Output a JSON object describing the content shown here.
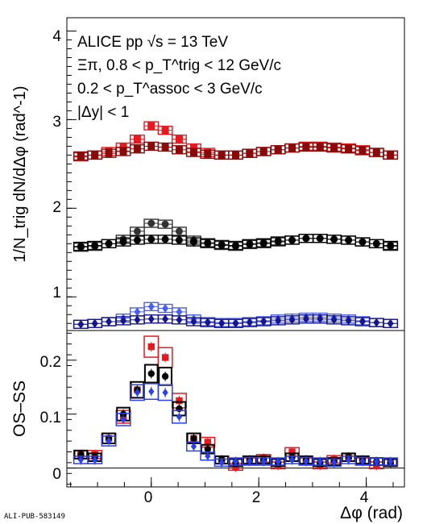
{
  "chart_data": [
    {
      "type": "scatter",
      "panel": "top",
      "ylabel": "1/N_trig dN/dΔφ (rad^-1)",
      "ylim": [
        0.62,
        4.15
      ],
      "y_ticks": [
        "1",
        "2",
        "3",
        "4"
      ],
      "annotations": [
        "ALICE pp √s = 13 TeV",
        "Ξπ, 0.8 < p_T^trig < 12 GeV/c",
        "0.2 < p_T^assoc < 3 GeV/c",
        "|Δy| < 1"
      ],
      "x": [
        -1.31,
        -1.05,
        -0.79,
        -0.52,
        -0.26,
        0.0,
        0.26,
        0.52,
        0.79,
        1.05,
        1.31,
        1.57,
        1.83,
        2.09,
        2.36,
        2.62,
        2.88,
        3.14,
        3.4,
        3.67,
        3.93,
        4.19,
        4.45
      ],
      "series": [
        {
          "color": "#e8181e",
          "marker": "square",
          "values": [
            2.58,
            2.6,
            2.64,
            2.69,
            2.78,
            2.93,
            2.88,
            2.78,
            2.68,
            2.63,
            2.6,
            2.6,
            2.62,
            2.64,
            2.66,
            2.68,
            2.7,
            2.7,
            2.69,
            2.68,
            2.66,
            2.63,
            2.6
          ]
        },
        {
          "color": "#8a0a0a",
          "marker": "square",
          "values": [
            2.59,
            2.6,
            2.62,
            2.64,
            2.67,
            2.7,
            2.69,
            2.66,
            2.63,
            2.61,
            2.6,
            2.6,
            2.62,
            2.64,
            2.66,
            2.68,
            2.69,
            2.69,
            2.68,
            2.67,
            2.65,
            2.63,
            2.6
          ]
        },
        {
          "color": "#333333",
          "marker": "circle",
          "values": [
            1.56,
            1.57,
            1.6,
            1.65,
            1.74,
            1.83,
            1.82,
            1.74,
            1.64,
            1.6,
            1.58,
            1.57,
            1.59,
            1.6,
            1.62,
            1.64,
            1.66,
            1.66,
            1.65,
            1.64,
            1.62,
            1.6,
            1.57
          ]
        },
        {
          "color": "#000000",
          "marker": "circle",
          "values": [
            1.57,
            1.58,
            1.6,
            1.62,
            1.64,
            1.65,
            1.65,
            1.64,
            1.62,
            1.61,
            1.59,
            1.58,
            1.6,
            1.61,
            1.63,
            1.64,
            1.66,
            1.66,
            1.65,
            1.64,
            1.62,
            1.6,
            1.58
          ]
        },
        {
          "color": "#4a5ef2",
          "marker": "diamond",
          "values": [
            0.69,
            0.7,
            0.72,
            0.76,
            0.83,
            0.89,
            0.87,
            0.83,
            0.75,
            0.72,
            0.71,
            0.71,
            0.72,
            0.73,
            0.75,
            0.76,
            0.77,
            0.77,
            0.76,
            0.75,
            0.73,
            0.71,
            0.7
          ]
        },
        {
          "color": "#15158c",
          "marker": "diamond",
          "values": [
            0.69,
            0.7,
            0.72,
            0.73,
            0.74,
            0.75,
            0.75,
            0.74,
            0.72,
            0.71,
            0.7,
            0.7,
            0.71,
            0.72,
            0.73,
            0.74,
            0.75,
            0.75,
            0.74,
            0.73,
            0.72,
            0.71,
            0.7
          ]
        }
      ]
    },
    {
      "type": "scatter",
      "panel": "bottom",
      "xlabel": "Δφ (rad)",
      "ylabel": "OS–SS",
      "xlim": [
        -1.57,
        4.71
      ],
      "ylim": [
        -0.035,
        0.255
      ],
      "x_ticks": [
        "0",
        "2",
        "4"
      ],
      "y_ticks": [
        "0",
        "0.1",
        "0.2"
      ],
      "x": [
        -1.31,
        -1.05,
        -0.79,
        -0.52,
        -0.26,
        0.0,
        0.26,
        0.52,
        0.79,
        1.05,
        1.31,
        1.57,
        1.83,
        2.09,
        2.36,
        2.62,
        2.88,
        3.14,
        3.4,
        3.67,
        3.93,
        4.19,
        4.45
      ],
      "series": [
        {
          "color": "#e8181e",
          "marker": "square",
          "values": [
            0.025,
            0.025,
            0.055,
            0.095,
            0.145,
            0.225,
            0.205,
            0.125,
            0.055,
            0.048,
            0.015,
            0.002,
            0.012,
            0.018,
            0.005,
            0.03,
            0.012,
            0.005,
            0.016,
            0.02,
            0.012,
            0.005,
            0.01
          ]
        },
        {
          "color": "#000000",
          "marker": "circle",
          "values": [
            0.025,
            0.02,
            0.055,
            0.1,
            0.145,
            0.175,
            0.17,
            0.11,
            0.055,
            0.035,
            0.015,
            0.01,
            0.015,
            0.015,
            0.01,
            0.02,
            0.015,
            0.01,
            0.012,
            0.02,
            0.015,
            0.012,
            0.01
          ]
        },
        {
          "color": "#2a3ff0",
          "marker": "diamond",
          "values": [
            0.015,
            0.015,
            0.05,
            0.09,
            0.14,
            0.142,
            0.14,
            0.095,
            0.04,
            0.022,
            0.01,
            0.012,
            0.013,
            0.012,
            0.012,
            0.015,
            0.013,
            0.012,
            0.01,
            0.015,
            0.013,
            0.012,
            0.012
          ]
        }
      ]
    }
  ],
  "watermark": "ALI-PUB-583149"
}
